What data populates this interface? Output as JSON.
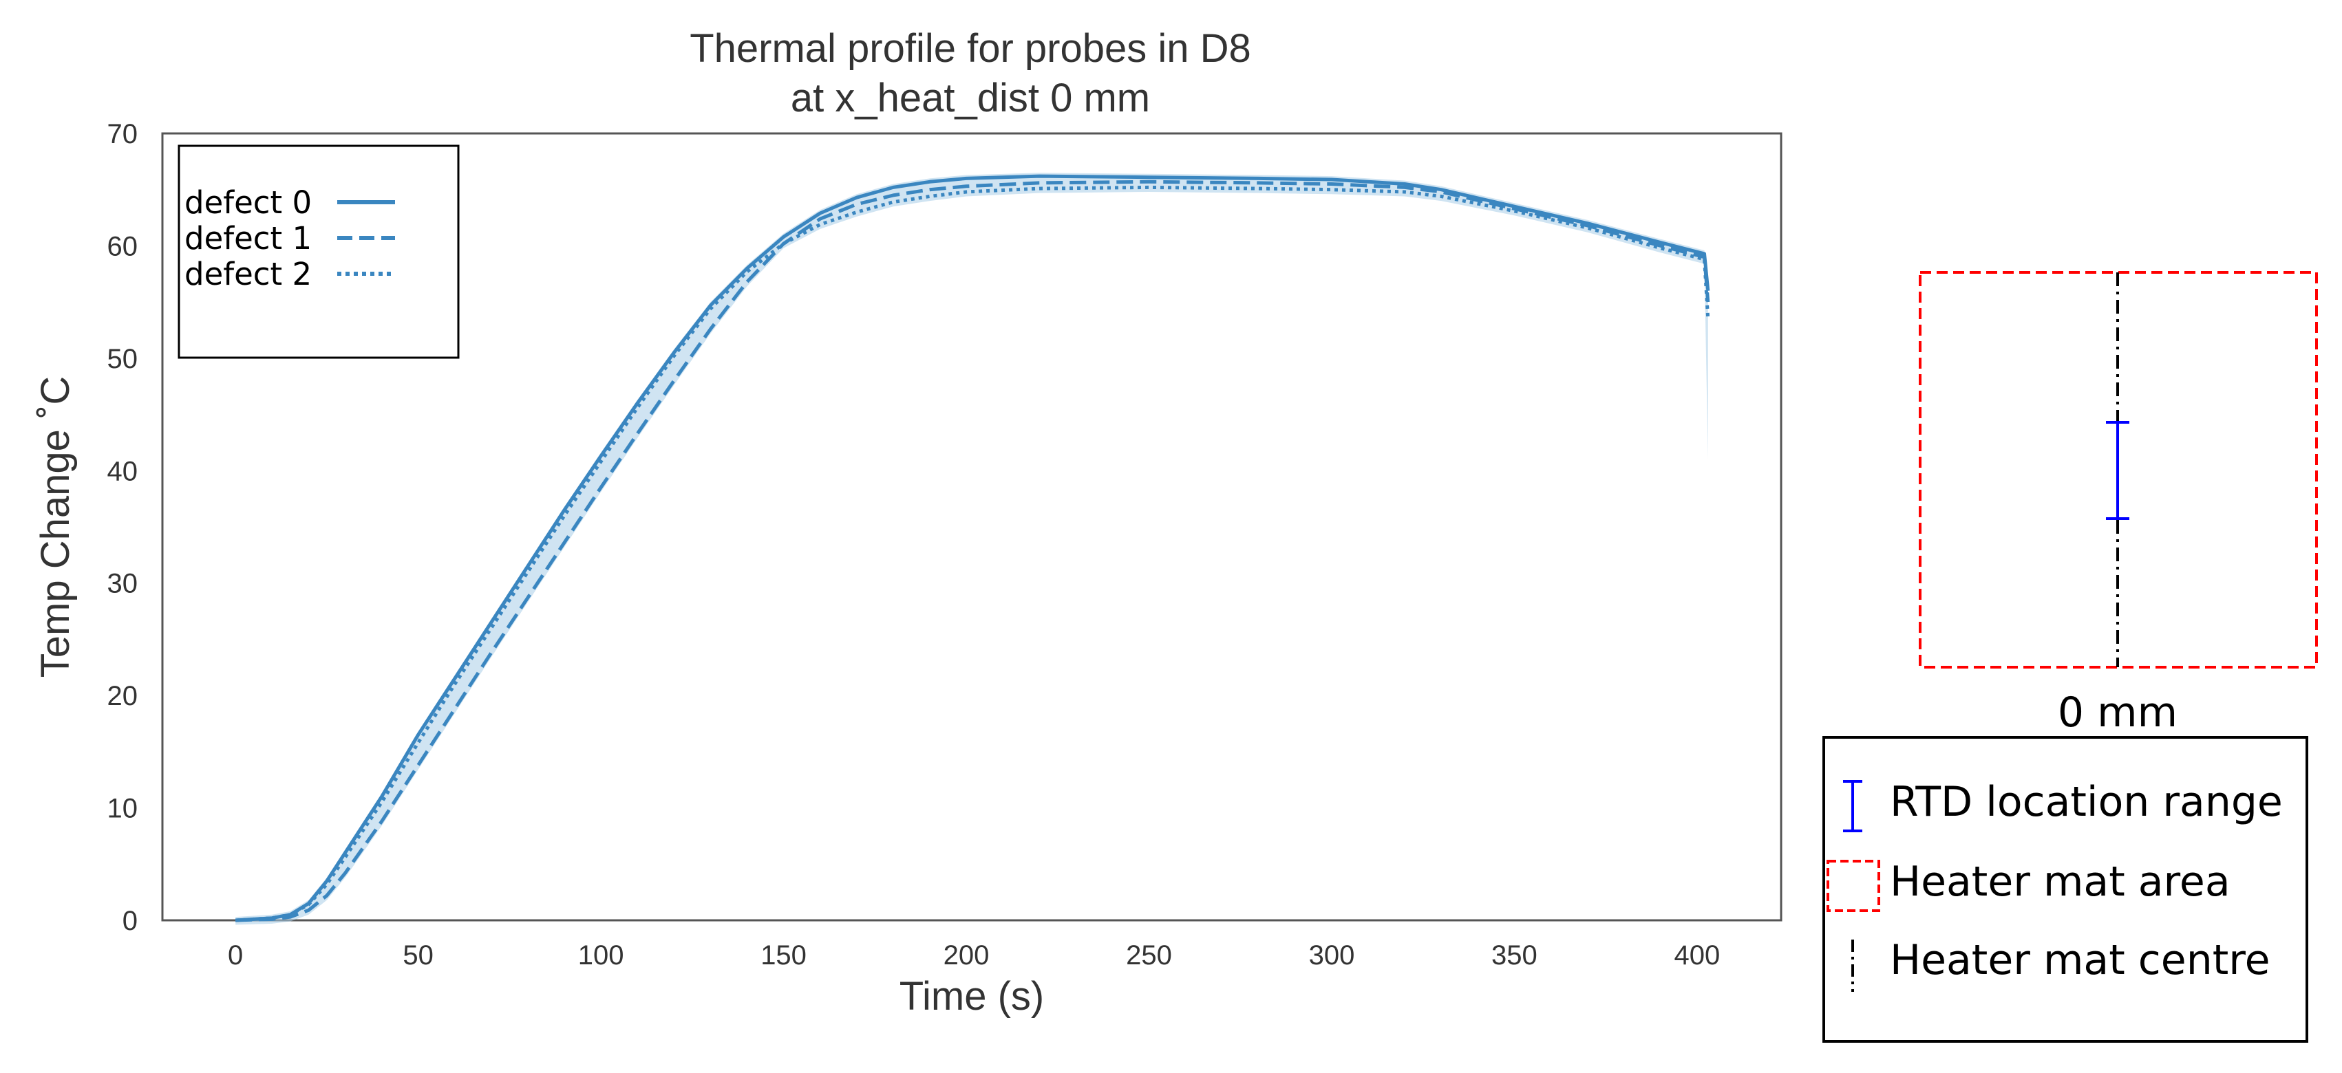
{
  "chart_data": {
    "type": "line",
    "title": [
      "Thermal profile for probes in D8",
      "at x_heat_dist 0 mm"
    ],
    "xlabel": "Time (s)",
    "ylabel": "Temp Change ˚C",
    "xlim": [
      -20,
      423
    ],
    "ylim": [
      0,
      70
    ],
    "xticks": [
      0,
      50,
      100,
      150,
      200,
      250,
      300,
      350,
      400
    ],
    "yticks": [
      0,
      10,
      20,
      30,
      40,
      50,
      60,
      70
    ],
    "grid": false,
    "legend_position": "top-left",
    "color": "#3a86c0",
    "band_color": "#a9cde8",
    "series": [
      {
        "name": "defect 0",
        "style": "solid",
        "points": [
          [
            0,
            0
          ],
          [
            10,
            0.2
          ],
          [
            15,
            0.5
          ],
          [
            20,
            1.5
          ],
          [
            25,
            3.5
          ],
          [
            30,
            6
          ],
          [
            40,
            11
          ],
          [
            50,
            16.5
          ],
          [
            60,
            21.5
          ],
          [
            70,
            26.5
          ],
          [
            80,
            31.5
          ],
          [
            90,
            36.5
          ],
          [
            100,
            41.3
          ],
          [
            110,
            46
          ],
          [
            120,
            50.5
          ],
          [
            130,
            54.7
          ],
          [
            140,
            58
          ],
          [
            150,
            60.8
          ],
          [
            160,
            62.9
          ],
          [
            170,
            64.3
          ],
          [
            180,
            65.2
          ],
          [
            190,
            65.7
          ],
          [
            200,
            66
          ],
          [
            220,
            66.2
          ],
          [
            250,
            66.1
          ],
          [
            280,
            66
          ],
          [
            300,
            65.9
          ],
          [
            320,
            65.5
          ],
          [
            330,
            65
          ],
          [
            350,
            63.5
          ],
          [
            370,
            62
          ],
          [
            390,
            60.3
          ],
          [
            402,
            59.3
          ],
          [
            403,
            56
          ]
        ]
      },
      {
        "name": "defect 1",
        "style": "dashed",
        "points": [
          [
            0,
            0
          ],
          [
            10,
            0.1
          ],
          [
            15,
            0.3
          ],
          [
            20,
            0.9
          ],
          [
            25,
            2.2
          ],
          [
            30,
            4.2
          ],
          [
            40,
            8.8
          ],
          [
            50,
            13.8
          ],
          [
            60,
            18.8
          ],
          [
            70,
            23.8
          ],
          [
            80,
            28.7
          ],
          [
            90,
            33.6
          ],
          [
            100,
            38.5
          ],
          [
            110,
            43.3
          ],
          [
            120,
            48
          ],
          [
            130,
            52.6
          ],
          [
            140,
            56.8
          ],
          [
            150,
            60.2
          ],
          [
            160,
            62.4
          ],
          [
            170,
            63.7
          ],
          [
            180,
            64.5
          ],
          [
            190,
            65
          ],
          [
            200,
            65.3
          ],
          [
            220,
            65.6
          ],
          [
            250,
            65.7
          ],
          [
            280,
            65.6
          ],
          [
            300,
            65.5
          ],
          [
            320,
            65.2
          ],
          [
            330,
            64.8
          ],
          [
            350,
            63.3
          ],
          [
            370,
            61.8
          ],
          [
            390,
            60
          ],
          [
            402,
            59
          ],
          [
            403,
            55
          ]
        ]
      },
      {
        "name": "defect 2",
        "style": "dotted",
        "points": [
          [
            0,
            0
          ],
          [
            10,
            0.2
          ],
          [
            15,
            0.5
          ],
          [
            20,
            1.4
          ],
          [
            25,
            3.2
          ],
          [
            30,
            5.6
          ],
          [
            40,
            10.5
          ],
          [
            50,
            15.8
          ],
          [
            60,
            21
          ],
          [
            70,
            26
          ],
          [
            80,
            31
          ],
          [
            90,
            36
          ],
          [
            100,
            40.8
          ],
          [
            110,
            45.6
          ],
          [
            120,
            50.2
          ],
          [
            130,
            54.4
          ],
          [
            140,
            57.7
          ],
          [
            150,
            60.2
          ],
          [
            160,
            61.9
          ],
          [
            170,
            63
          ],
          [
            180,
            63.9
          ],
          [
            190,
            64.4
          ],
          [
            200,
            64.8
          ],
          [
            220,
            65.1
          ],
          [
            250,
            65.2
          ],
          [
            280,
            65.1
          ],
          [
            300,
            65
          ],
          [
            320,
            64.8
          ],
          [
            330,
            64.4
          ],
          [
            350,
            63.1
          ],
          [
            370,
            61.6
          ],
          [
            390,
            59.8
          ],
          [
            402,
            58.8
          ],
          [
            403,
            53.5
          ]
        ]
      }
    ]
  },
  "side_panel": {
    "dimension_label": "0 mm",
    "legend": [
      {
        "icon": "rtd-range-icon",
        "label": "RTD location range",
        "color": "#0000ff"
      },
      {
        "icon": "heater-area-icon",
        "label": "Heater mat area",
        "color": "#ff0000"
      },
      {
        "icon": "heater-centre-icon",
        "label": "Heater mat centre",
        "color": "#000000"
      }
    ]
  }
}
